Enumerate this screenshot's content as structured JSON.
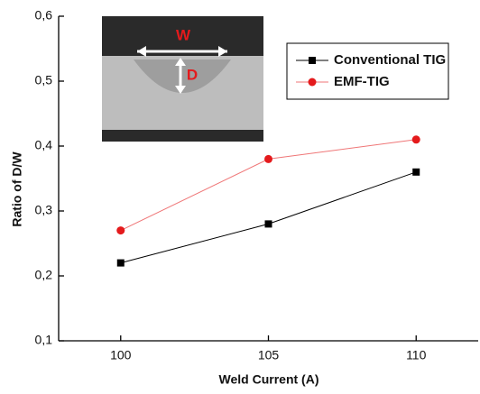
{
  "chart_data": {
    "type": "line",
    "xlabel": "Weld Current (A)",
    "ylabel": "Ratio of D/W",
    "x": [
      100,
      105,
      110
    ],
    "series": [
      {
        "name": "Conventional TIG",
        "color": "#000000",
        "marker": "square",
        "values": [
          0.22,
          0.28,
          0.36
        ]
      },
      {
        "name": "EMF-TIG",
        "color": "#e41a1c",
        "marker": "circle",
        "values": [
          0.27,
          0.38,
          0.41
        ]
      }
    ],
    "xlim": [
      97.9,
      112.1
    ],
    "ylim": [
      0.1,
      0.6
    ],
    "xticks": [
      100,
      105,
      110
    ],
    "yticks": [
      {
        "value": 0.1,
        "label": "0,1"
      },
      {
        "value": 0.2,
        "label": "0,2"
      },
      {
        "value": 0.3,
        "label": "0,3"
      },
      {
        "value": 0.4,
        "label": "0,4"
      },
      {
        "value": 0.5,
        "label": "0,5"
      },
      {
        "value": 0.6,
        "label": "0,6"
      }
    ],
    "grid": false,
    "annotations": [
      {
        "text": "W"
      },
      {
        "text": "D"
      }
    ]
  }
}
